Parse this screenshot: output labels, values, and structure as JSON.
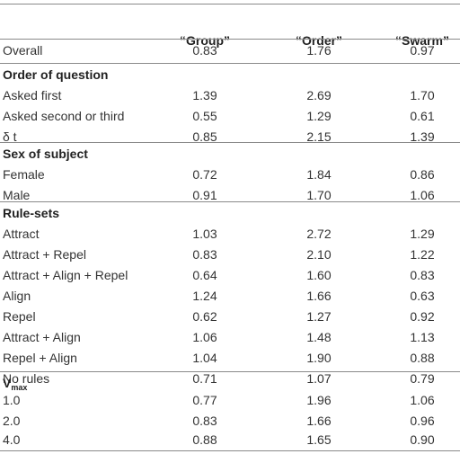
{
  "header": {
    "col1": "“Group”",
    "col2": "“Order”",
    "col3": "“Swarm”"
  },
  "overall": {
    "label": "Overall",
    "values": [
      "0.83",
      "1.76",
      "0.97"
    ]
  },
  "sections": [
    {
      "title": "Order of question",
      "rows": [
        {
          "label": "Asked first",
          "values": [
            "1.39",
            "2.69",
            "1.70"
          ]
        },
        {
          "label": "Asked second or third",
          "values": [
            "0.55",
            "1.29",
            "0.61"
          ]
        },
        {
          "label": "δ t",
          "values": [
            "0.85",
            "2.15",
            "1.39"
          ]
        }
      ]
    },
    {
      "title": "Sex of subject",
      "rows": [
        {
          "label": "Female",
          "values": [
            "0.72",
            "1.84",
            "0.86"
          ]
        },
        {
          "label": "Male",
          "values": [
            "0.91",
            "1.70",
            "1.06"
          ]
        }
      ]
    },
    {
      "title": "Rule-sets",
      "rows": [
        {
          "label": "Attract",
          "values": [
            "1.03",
            "2.72",
            "1.29"
          ]
        },
        {
          "label": "Attract + Repel",
          "values": [
            "0.83",
            "2.10",
            "1.22"
          ]
        },
        {
          "label": "Attract + Align + Repel",
          "values": [
            "0.64",
            "1.60",
            "0.83"
          ]
        },
        {
          "label": "Align",
          "values": [
            "1.24",
            "1.66",
            "0.63"
          ]
        },
        {
          "label": "Repel",
          "values": [
            "0.62",
            "1.27",
            "0.92"
          ]
        },
        {
          "label": "Attract + Align",
          "values": [
            "1.06",
            "1.48",
            "1.13"
          ]
        },
        {
          "label": "Repel + Align",
          "values": [
            "1.04",
            "1.90",
            "0.88"
          ]
        },
        {
          "label": "No rules",
          "values": [
            "0.71",
            "1.07",
            "0.79"
          ]
        }
      ]
    },
    {
      "title_main": "V",
      "title_sub": "max",
      "rows": [
        {
          "label": "1.0",
          "values": [
            "0.77",
            "1.96",
            "1.06"
          ]
        },
        {
          "label": "2.0",
          "values": [
            "0.83",
            "1.66",
            "0.96"
          ]
        },
        {
          "label": "4.0",
          "values": [
            "0.88",
            "1.65",
            "0.90"
          ]
        }
      ]
    }
  ]
}
